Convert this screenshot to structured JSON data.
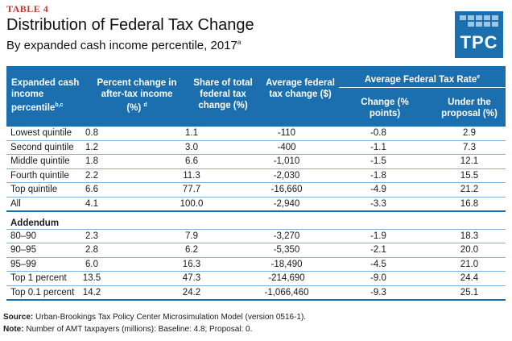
{
  "header": {
    "table_label": "TABLE 4",
    "title": "Distribution of Federal Tax Change",
    "subtitle": "By expanded cash income percentile, 2017",
    "subtitle_sup": "a"
  },
  "logo": {
    "text": "TPC",
    "color": "#1b6fae"
  },
  "columns": {
    "percentile": "Expanded cash income percentile",
    "percentile_sup": "b,c",
    "pct_change": "Percent change in after-tax income (%)",
    "pct_change_sup": "d",
    "share": "Share of total federal tax change (%)",
    "avg_change": "Average federal tax change ($)",
    "rate_group": "Average Federal Tax Rate",
    "rate_group_sup": "e",
    "rate_change": "Change (% points)",
    "rate_proposal": "Under the proposal (%)"
  },
  "rows": [
    {
      "label": "Lowest quintile",
      "pct_change": "0.8",
      "share": "1.1",
      "avg_change": "-110",
      "rate_change": "-0.8",
      "rate_proposal": "2.9"
    },
    {
      "label": "Second quintile",
      "pct_change": "1.2",
      "share": "3.0",
      "avg_change": "-400",
      "rate_change": "-1.1",
      "rate_proposal": "7.3"
    },
    {
      "label": "Middle quintile",
      "pct_change": "1.8",
      "share": "6.6",
      "avg_change": "-1,010",
      "rate_change": "-1.5",
      "rate_proposal": "12.1"
    },
    {
      "label": "Fourth quintile",
      "pct_change": "2.2",
      "share": "11.3",
      "avg_change": "-2,030",
      "rate_change": "-1.8",
      "rate_proposal": "15.5"
    },
    {
      "label": "Top quintile",
      "pct_change": "6.6",
      "share": "77.7",
      "avg_change": "-16,660",
      "rate_change": "-4.9",
      "rate_proposal": "21.2"
    },
    {
      "label": "All",
      "pct_change": "4.1",
      "share": "100.0",
      "avg_change": "-2,940",
      "rate_change": "-3.3",
      "rate_proposal": "16.8"
    }
  ],
  "addendum_label": "Addendum",
  "addendum_rows": [
    {
      "label": "80–90",
      "pct_change": "2.3",
      "share": "7.9",
      "avg_change": "-3,270",
      "rate_change": "-1.9",
      "rate_proposal": "18.3"
    },
    {
      "label": "90–95",
      "pct_change": "2.8",
      "share": "6.2",
      "avg_change": "-5,350",
      "rate_change": "-2.1",
      "rate_proposal": "20.0"
    },
    {
      "label": "95–99",
      "pct_change": "6.0",
      "share": "16.3",
      "avg_change": "-18,490",
      "rate_change": "-4.5",
      "rate_proposal": "21.0"
    },
    {
      "label": "Top 1 percent",
      "pct_change": "13.5",
      "share": "47.3",
      "avg_change": "-214,690",
      "rate_change": "-9.0",
      "rate_proposal": "24.4"
    },
    {
      "label": "Top 0.1 percent",
      "pct_change": "14.2",
      "share": "24.2",
      "avg_change": "-1,066,460",
      "rate_change": "-9.3",
      "rate_proposal": "25.1"
    }
  ],
  "footnotes": {
    "source_label": "Source:",
    "source_text": "Urban-Brookings Tax Policy Center Microsimulation Model (version 0516-1).",
    "note_label": "Note:",
    "note_text": "Number of AMT taxpayers (millions): Baseline: 4.8; Proposal: 0."
  }
}
